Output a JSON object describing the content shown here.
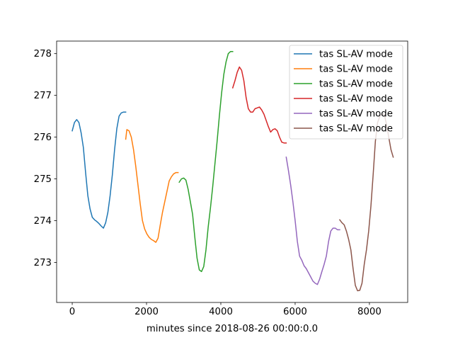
{
  "chart_data": {
    "type": "line",
    "title": "",
    "xlabel": "minutes since 2018-08-26 00:00:0.0",
    "ylabel": "",
    "xlim": [
      -420,
      9030
    ],
    "ylim": [
      272.04,
      278.3
    ],
    "xticks": [
      0,
      2000,
      4000,
      6000,
      8000
    ],
    "xtick_labels": [
      "0",
      "2000",
      "4000",
      "6000",
      "8000"
    ],
    "yticks": [
      273,
      274,
      275,
      276,
      277,
      278
    ],
    "ytick_labels": [
      "273",
      "274",
      "275",
      "276",
      "277",
      "278"
    ],
    "grid": false,
    "legend_position": "top-right",
    "series": [
      {
        "name": "tas SL-AV mode",
        "color": "#1f77b4",
        "x": [
          0,
          60,
          120,
          180,
          240,
          300,
          360,
          420,
          480,
          540,
          600,
          660,
          720,
          780,
          840,
          900,
          960,
          1020,
          1080,
          1140,
          1200,
          1260,
          1320,
          1380,
          1440
        ],
        "y": [
          276.15,
          276.35,
          276.42,
          276.35,
          276.1,
          275.75,
          275.15,
          274.6,
          274.28,
          274.08,
          274.02,
          273.98,
          273.93,
          273.87,
          273.82,
          273.95,
          274.2,
          274.6,
          275.1,
          275.7,
          276.2,
          276.5,
          276.58,
          276.6,
          276.6
        ]
      },
      {
        "name": "tas SL-AV mode",
        "color": "#ff7f0e",
        "x": [
          1440,
          1470,
          1530,
          1590,
          1650,
          1710,
          1770,
          1830,
          1890,
          1950,
          2010,
          2070,
          2130,
          2190,
          2250,
          2310,
          2370,
          2430,
          2490,
          2550,
          2610,
          2670,
          2730,
          2790,
          2850
        ],
        "y": [
          275.95,
          276.18,
          276.15,
          276.0,
          275.7,
          275.3,
          274.85,
          274.4,
          274.0,
          273.8,
          273.68,
          273.6,
          273.55,
          273.52,
          273.48,
          273.58,
          273.9,
          274.2,
          274.45,
          274.7,
          274.95,
          275.05,
          275.12,
          275.15,
          275.15
        ]
      },
      {
        "name": "tas SL-AV mode",
        "color": "#2ca02c",
        "x": [
          2880,
          2940,
          3000,
          3060,
          3120,
          3180,
          3240,
          3300,
          3360,
          3420,
          3480,
          3540,
          3600,
          3660,
          3720,
          3780,
          3840,
          3900,
          3960,
          4020,
          4080,
          4140,
          4200,
          4260,
          4320
        ],
        "y": [
          274.92,
          275.0,
          275.02,
          274.97,
          274.75,
          274.45,
          274.15,
          273.6,
          273.1,
          272.82,
          272.78,
          272.9,
          273.3,
          273.85,
          274.3,
          274.8,
          275.35,
          275.9,
          276.5,
          277.05,
          277.5,
          277.8,
          278.0,
          278.05,
          278.05
        ]
      },
      {
        "name": "tas SL-AV mode",
        "color": "#d62728",
        "x": [
          4320,
          4380,
          4440,
          4500,
          4560,
          4620,
          4680,
          4740,
          4800,
          4860,
          4920,
          4980,
          5040,
          5100,
          5160,
          5220,
          5280,
          5340,
          5400,
          5460,
          5520,
          5580,
          5640,
          5700,
          5760
        ],
        "y": [
          277.18,
          277.35,
          277.55,
          277.68,
          277.6,
          277.35,
          276.95,
          276.68,
          276.6,
          276.6,
          276.68,
          276.7,
          276.72,
          276.65,
          276.55,
          276.4,
          276.25,
          276.12,
          276.18,
          276.2,
          276.15,
          276.0,
          275.88,
          275.86,
          275.86
        ]
      },
      {
        "name": "tas SL-AV mode",
        "color": "#9467bd",
        "x": [
          5760,
          5820,
          5880,
          5940,
          6000,
          6060,
          6120,
          6180,
          6240,
          6300,
          6360,
          6420,
          6480,
          6540,
          6600,
          6660,
          6720,
          6780,
          6840,
          6900,
          6960,
          7020,
          7080,
          7140,
          7200
        ],
        "y": [
          275.52,
          275.2,
          274.85,
          274.45,
          274.0,
          273.5,
          273.15,
          273.05,
          272.92,
          272.85,
          272.75,
          272.65,
          272.55,
          272.5,
          272.47,
          272.6,
          272.78,
          272.95,
          273.15,
          273.5,
          273.75,
          273.82,
          273.82,
          273.78,
          273.78
        ]
      },
      {
        "name": "tas SL-AV mode",
        "color": "#8c564b",
        "x": [
          7200,
          7260,
          7320,
          7380,
          7440,
          7500,
          7560,
          7620,
          7680,
          7740,
          7800,
          7860,
          7920,
          7980,
          8040,
          8100,
          8160,
          8220,
          8280,
          8340,
          8400,
          8460,
          8520,
          8580,
          8640
        ],
        "y": [
          274.02,
          273.95,
          273.9,
          273.75,
          273.55,
          273.3,
          272.85,
          272.45,
          272.32,
          272.33,
          272.5,
          272.95,
          273.3,
          273.75,
          274.35,
          275.1,
          275.9,
          276.35,
          276.5,
          276.55,
          276.55,
          276.3,
          276.0,
          275.7,
          275.52
        ]
      }
    ]
  }
}
